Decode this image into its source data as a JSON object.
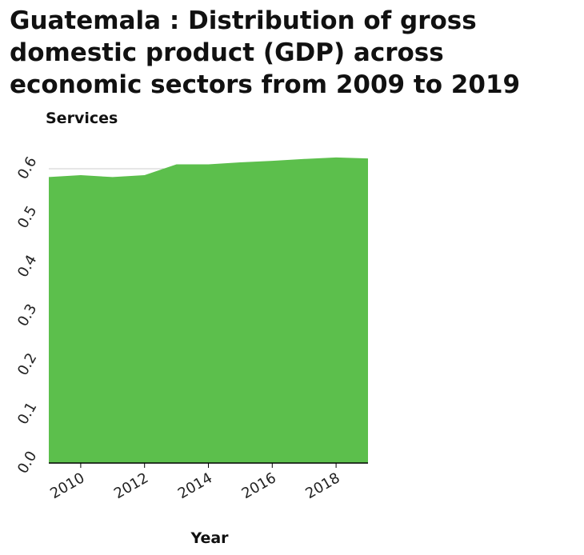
{
  "chart_data": {
    "type": "area",
    "title": "Guatemala : Distribution of gross domestic product (GDP) across economic sectors from 2009 to 2019",
    "xlabel": "Year",
    "ylabel": "Services",
    "x": [
      2009,
      2010,
      2011,
      2012,
      2013,
      2014,
      2015,
      2016,
      2017,
      2018,
      2019
    ],
    "series": [
      {
        "values": [
          0.583,
          0.587,
          0.583,
          0.587,
          0.609,
          0.609,
          0.613,
          0.616,
          0.62,
          0.623,
          0.621
        ]
      }
    ],
    "xlim": [
      2009,
      2019
    ],
    "ylim": [
      0,
      0.6
    ],
    "xticks": [
      2010,
      2012,
      2014,
      2016,
      2018
    ],
    "yticks": [
      0.0,
      0.1,
      0.2,
      0.3,
      0.4,
      0.5,
      0.6
    ],
    "xtick_labels": [
      "2010",
      "2012",
      "2014",
      "2016",
      "2018"
    ],
    "ytick_labels": [
      "0.0",
      "0.1",
      "0.2",
      "0.3",
      "0.4",
      "0.5",
      "0.6"
    ],
    "grid": true,
    "colors": {
      "area": "#5cbf4c",
      "grid": "#cccccc",
      "axis": "#000000"
    }
  }
}
